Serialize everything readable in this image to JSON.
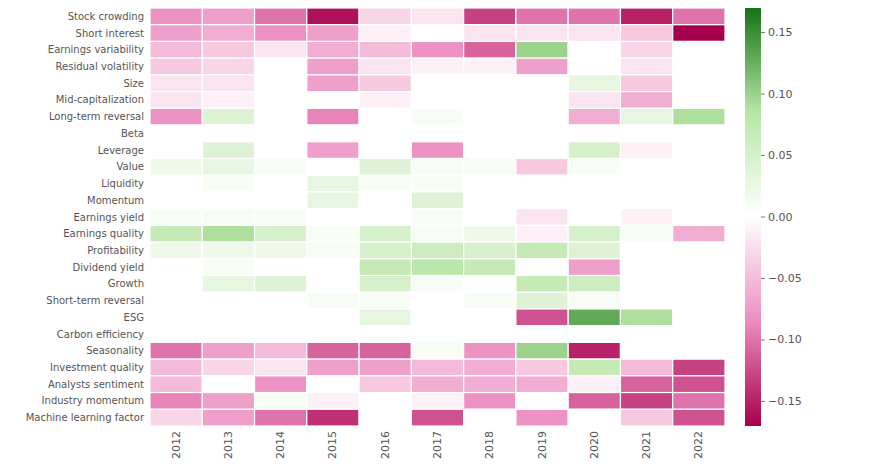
{
  "chart_data": {
    "type": "heatmap",
    "rows": [
      "Stock crowding",
      "Short interest",
      "Earnings variability",
      "Residual volatility",
      "Size",
      "Mid-capitalization",
      "Long-term reversal",
      "Beta",
      "Leverage",
      "Value",
      "Liquidity",
      "Momentum",
      "Earnings yield",
      "Earnings quality",
      "Profitability",
      "Dividend yield",
      "Growth",
      "Short-term reversal",
      "ESG",
      "Carbon efficiency",
      "Seasonality",
      "Investment quality",
      "Analysts sentiment",
      "Industry momentum",
      "Machine learning factor"
    ],
    "categories": [
      "2012",
      "2013",
      "2014",
      "2015",
      "2016",
      "2017",
      "2018",
      "2019",
      "2020",
      "2021",
      "2022"
    ],
    "values": [
      [
        -0.08,
        -0.07,
        -0.1,
        -0.16,
        -0.03,
        -0.02,
        -0.13,
        -0.1,
        -0.1,
        -0.15,
        -0.1
      ],
      [
        -0.07,
        -0.06,
        -0.08,
        -0.07,
        -0.01,
        0.0,
        -0.02,
        -0.02,
        -0.02,
        -0.04,
        -0.17
      ],
      [
        -0.05,
        -0.04,
        -0.02,
        -0.06,
        -0.05,
        -0.08,
        -0.11,
        0.1,
        0.0,
        -0.03,
        0.0
      ],
      [
        -0.04,
        -0.03,
        0.0,
        -0.07,
        -0.02,
        -0.01,
        -0.01,
        -0.07,
        0.0,
        -0.02,
        0.0
      ],
      [
        -0.02,
        -0.02,
        0.0,
        -0.07,
        -0.04,
        0.0,
        0.0,
        0.0,
        0.03,
        -0.04,
        0.0
      ],
      [
        -0.02,
        -0.01,
        0.0,
        0.0,
        -0.01,
        0.0,
        0.0,
        0.0,
        -0.02,
        -0.06,
        0.0
      ],
      [
        -0.08,
        0.04,
        0.0,
        -0.09,
        0.0,
        0.01,
        0.0,
        0.0,
        -0.06,
        0.03,
        0.09
      ],
      [
        0.0,
        0.0,
        0.0,
        0.0,
        0.0,
        0.0,
        0.0,
        0.0,
        0.0,
        0.0,
        0.0
      ],
      [
        0.0,
        0.04,
        0.0,
        -0.07,
        0.0,
        -0.08,
        0.0,
        0.0,
        0.05,
        -0.01,
        0.0
      ],
      [
        0.02,
        0.03,
        0.01,
        0.0,
        0.04,
        0.01,
        0.01,
        -0.04,
        0.01,
        0.0,
        0.0
      ],
      [
        0.0,
        0.01,
        0.0,
        0.03,
        0.01,
        0.01,
        0.0,
        0.0,
        0.0,
        0.0,
        0.0
      ],
      [
        0.0,
        0.0,
        0.0,
        0.03,
        0.0,
        0.04,
        0.0,
        0.0,
        0.0,
        0.0,
        0.0
      ],
      [
        0.01,
        0.01,
        0.01,
        0.0,
        0.0,
        0.01,
        0.0,
        -0.02,
        0.0,
        -0.01,
        0.0
      ],
      [
        0.07,
        0.09,
        0.05,
        0.01,
        0.05,
        0.01,
        0.02,
        -0.01,
        0.05,
        0.01,
        -0.06
      ],
      [
        0.02,
        0.02,
        0.02,
        0.01,
        0.05,
        0.06,
        0.05,
        0.07,
        0.04,
        0.0,
        0.0
      ],
      [
        0.0,
        0.01,
        0.0,
        0.0,
        0.07,
        0.08,
        0.07,
        0.0,
        -0.07,
        0.0,
        0.0
      ],
      [
        0.0,
        0.03,
        0.04,
        0.0,
        0.05,
        0.01,
        0.0,
        0.07,
        0.06,
        0.0,
        0.0
      ],
      [
        0.0,
        0.0,
        0.0,
        0.01,
        0.01,
        0.0,
        0.01,
        0.04,
        0.01,
        0.0,
        0.0
      ],
      [
        0.0,
        0.0,
        0.0,
        0.0,
        0.03,
        0.0,
        0.0,
        -0.12,
        0.13,
        0.09,
        0.0
      ],
      [
        0.0,
        0.0,
        0.0,
        0.0,
        0.0,
        0.0,
        0.0,
        0.0,
        0.0,
        0.0,
        0.0
      ],
      [
        -0.1,
        -0.07,
        -0.05,
        -0.11,
        -0.11,
        0.01,
        -0.08,
        0.1,
        -0.15,
        0.0,
        0.0
      ],
      [
        -0.05,
        -0.03,
        -0.02,
        -0.07,
        -0.07,
        -0.05,
        -0.06,
        -0.04,
        0.07,
        -0.05,
        -0.13
      ],
      [
        -0.05,
        0.0,
        -0.08,
        0.0,
        -0.04,
        -0.06,
        -0.06,
        -0.06,
        -0.01,
        -0.11,
        -0.12
      ],
      [
        -0.09,
        -0.07,
        0.01,
        -0.01,
        0.0,
        -0.01,
        -0.08,
        0.0,
        -0.11,
        -0.13,
        -0.1
      ],
      [
        -0.03,
        -0.07,
        -0.1,
        -0.14,
        0.0,
        -0.12,
        0.0,
        -0.08,
        0.0,
        -0.04,
        -0.12
      ]
    ],
    "colorbar_range": [
      -0.17,
      0.17
    ],
    "colorbar_ticks": [
      0.15,
      {
        "value": 0.1,
        "label": "0.10"
      },
      0.05,
      {
        "value": 0.0,
        "label": "0.00"
      },
      {
        "value": -0.05,
        "label": "−0.05"
      },
      {
        "value": -0.1,
        "label": "−0.10"
      },
      {
        "value": -0.15,
        "label": "−0.15"
      }
    ]
  }
}
